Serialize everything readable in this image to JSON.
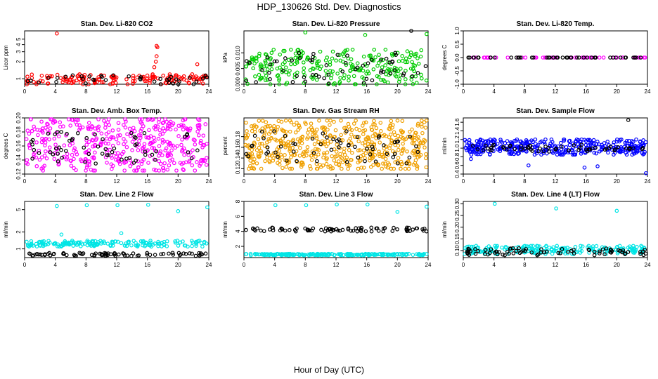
{
  "title": "HDP_130626 Std. Dev. Diagnostics",
  "xlabel": "Hour of Day (UTC)",
  "chart_data": [
    {
      "type": "scatter",
      "title": "Stan. Dev. Li-820 CO2",
      "ylabel": "Licor ppm",
      "xlim": [
        0,
        24
      ],
      "ylim": [
        0.8,
        7
      ],
      "xticks": [
        0,
        4,
        8,
        12,
        16,
        20,
        24
      ],
      "yticks": [
        1,
        2,
        3,
        4,
        5
      ],
      "log": true,
      "series": [
        {
          "color": "#ff0000",
          "values": [
            [
              4.2,
              6.3
            ],
            [
              17.2,
              3.8
            ],
            [
              17.3,
              3.6
            ],
            [
              17.2,
              2.5
            ],
            [
              17.1,
              2.0
            ],
            [
              16.9,
              1.6
            ],
            [
              22.5,
              1.8
            ]
          ],
          "band": [
            0.8,
            1.2,
            160
          ]
        },
        {
          "color": "#000000",
          "band": [
            0.8,
            1.15,
            40
          ]
        }
      ]
    },
    {
      "type": "scatter",
      "title": "Stan. Dev. Li-820 Pressure",
      "ylabel": "kPa",
      "xlim": [
        0,
        24
      ],
      "ylim": [
        0,
        0.017
      ],
      "xticks": [
        0,
        4,
        8,
        12,
        16,
        20,
        24
      ],
      "yticks": [
        0.0,
        0.005,
        0.01
      ],
      "series": [
        {
          "color": "#00cc00",
          "values": [
            [
              8,
              0.0165
            ],
            [
              15.8,
              0.0157
            ],
            [
              23.8,
              0.016
            ],
            [
              3.6,
              0.01
            ],
            [
              7.5,
              0.0105
            ]
          ],
          "band": [
            0.0,
            0.011,
            260
          ]
        },
        {
          "color": "#000000",
          "values": [
            [
              21.8,
              0.017
            ]
          ],
          "band": [
            0.0,
            0.01,
            60
          ]
        }
      ]
    },
    {
      "type": "scatter",
      "title": "Stan. Dev. Li-820 Temp.",
      "ylabel": "degrees C",
      "xlim": [
        0,
        24
      ],
      "ylim": [
        -1,
        1
      ],
      "xticks": [
        0,
        4,
        8,
        12,
        16,
        20,
        24
      ],
      "yticks": [
        -1.0,
        -0.5,
        0.0,
        0.5,
        1.0
      ],
      "series": [
        {
          "color": "#ff00ff",
          "band": [
            0,
            0,
            48
          ]
        },
        {
          "color": "#000000",
          "band": [
            0,
            0,
            48
          ]
        }
      ]
    },
    {
      "type": "scatter",
      "title": "Stan. Dev. Amb. Box Temp.",
      "ylabel": "degrees C",
      "xlim": [
        0,
        24
      ],
      "ylim": [
        0.12,
        0.2
      ],
      "xticks": [
        0,
        4,
        8,
        12,
        16,
        20,
        24
      ],
      "yticks": [
        0.12,
        0.14,
        0.16,
        0.18,
        0.2
      ],
      "series": [
        {
          "color": "#ff00ff",
          "band": [
            0.125,
            0.198,
            420
          ]
        },
        {
          "color": "#000000",
          "band": [
            0.135,
            0.18,
            60
          ]
        }
      ]
    },
    {
      "type": "scatter",
      "title": "Stan. Dev. Gas Stream RH",
      "ylabel": "percent",
      "xlim": [
        0,
        24
      ],
      "ylim": [
        0.11,
        0.215
      ],
      "xticks": [
        0,
        4,
        8,
        12,
        16,
        20,
        24
      ],
      "yticks": [
        0.12,
        0.14,
        0.16,
        0.18
      ],
      "series": [
        {
          "color": "#f0a000",
          "band": [
            0.12,
            0.21,
            520
          ]
        },
        {
          "color": "#000000",
          "band": [
            0.13,
            0.19,
            60
          ]
        }
      ]
    },
    {
      "type": "scatter",
      "title": "Stan. Dev. Sample Flow",
      "ylabel": "ml/min",
      "xlim": [
        0,
        24
      ],
      "ylim": [
        0.4,
        1.7
      ],
      "xticks": [
        0,
        4,
        8,
        12,
        16,
        20,
        24
      ],
      "yticks": [
        0.4,
        0.6,
        0.8,
        1.0,
        1.2,
        1.4,
        1.6
      ],
      "series": [
        {
          "color": "#0000ff",
          "values": [
            [
              23.8,
              0.42
            ],
            [
              15.8,
              0.55
            ],
            [
              17.5,
              0.58
            ],
            [
              8.5,
              0.6
            ],
            [
              1.0,
              0.75
            ]
          ],
          "band": [
            0.85,
            1.2,
            380
          ]
        },
        {
          "color": "#000000",
          "values": [
            [
              21.5,
              1.65
            ]
          ],
          "band": [
            0.92,
            1.08,
            60
          ]
        }
      ]
    },
    {
      "type": "scatter",
      "title": "Stan. Dev. Line 2 Flow",
      "ylabel": "ml/min",
      "xlim": [
        0,
        24
      ],
      "ylim": [
        0.7,
        7
      ],
      "xticks": [
        0,
        4,
        8,
        12,
        16,
        20,
        24
      ],
      "yticks": [
        1,
        2,
        5
      ],
      "log": true,
      "series": [
        {
          "color": "#00e5e5",
          "values": [
            [
              4.2,
              5.8
            ],
            [
              8.1,
              6.0
            ],
            [
              12.1,
              6.0
            ],
            [
              16.1,
              6.1
            ],
            [
              20.0,
              4.7
            ],
            [
              23.8,
              5.5
            ],
            [
              4.8,
              1.8
            ],
            [
              12.6,
              1.9
            ]
          ],
          "band": [
            1.1,
            1.4,
            180
          ]
        },
        {
          "color": "#000000",
          "band": [
            0.75,
            0.85,
            80
          ]
        }
      ]
    },
    {
      "type": "scatter",
      "title": "Stan. Dev. Line 3 Flow",
      "ylabel": "ml/min",
      "xlim": [
        0,
        24
      ],
      "ylim": [
        0.5,
        8
      ],
      "xticks": [
        0,
        4,
        8,
        12,
        16,
        20,
        24
      ],
      "yticks": [
        2,
        4,
        6,
        8
      ],
      "series": [
        {
          "color": "#00e5e5",
          "values": [
            [
              4.1,
              7.5
            ],
            [
              8.1,
              7.5
            ],
            [
              12.1,
              7.6
            ],
            [
              16.1,
              7.6
            ],
            [
              20.0,
              6.6
            ],
            [
              23.8,
              7.3
            ]
          ],
          "band": [
            0.8,
            1.0,
            220
          ]
        },
        {
          "color": "#000000",
          "band": [
            4.0,
            4.5,
            80
          ]
        }
      ]
    },
    {
      "type": "scatter",
      "title": "Stan. Dev. Line 4 (LT) Flow",
      "ylabel": "ml/min",
      "xlim": [
        0,
        24
      ],
      "ylim": [
        0.07,
        0.31
      ],
      "xticks": [
        0,
        4,
        8,
        12,
        16,
        20,
        24
      ],
      "yticks": [
        0.1,
        0.15,
        0.2,
        0.25,
        0.3
      ],
      "series": [
        {
          "color": "#00e5e5",
          "values": [
            [
              4.1,
              0.3
            ],
            [
              12.1,
              0.28
            ],
            [
              20.0,
              0.27
            ]
          ],
          "band": [
            0.085,
            0.12,
            220
          ]
        },
        {
          "color": "#000000",
          "band": [
            0.08,
            0.11,
            80
          ]
        }
      ]
    }
  ]
}
